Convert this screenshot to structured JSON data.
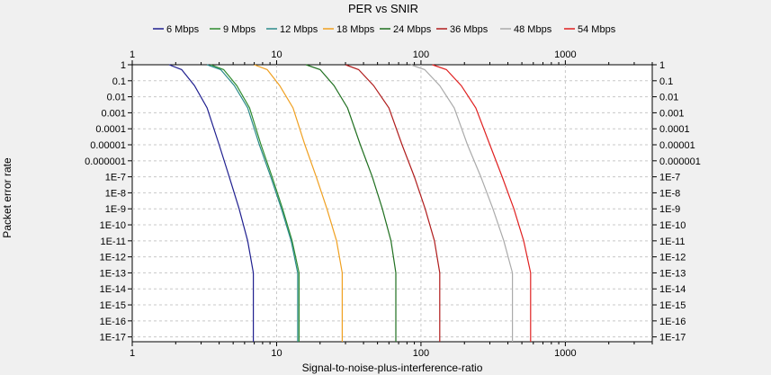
{
  "chart_data": {
    "type": "line",
    "title": "PER vs SNIR",
    "xlabel": "Signal-to-noise-plus-interference-ratio",
    "ylabel": "Packet error rate",
    "x_scale": "log",
    "y_scale": "log",
    "xlim": [
      1,
      4000
    ],
    "ylim": [
      5e-18,
      1
    ],
    "grid": true,
    "legend_position": "top",
    "x_tick_labels": [
      "1",
      "10",
      "100",
      "1000"
    ],
    "y_tick_labels": [
      "1",
      "0.1",
      "0.01",
      "0.001",
      "0.0001",
      "0.00001",
      "0.000001",
      "1E-7",
      "1E-8",
      "1E-9",
      "1E-10",
      "1E-11",
      "1E-12",
      "1E-13",
      "1E-14",
      "1E-15",
      "1E-16",
      "1E-17"
    ],
    "series": [
      {
        "name": "6 Mbps",
        "color": "#1f1f8f",
        "x": [
          1.8,
          2.2,
          2.7,
          3.3,
          4.0,
          4.7,
          5.5,
          6.3,
          6.9,
          6.9
        ],
        "y": [
          1,
          0.5,
          0.05,
          0.002,
          1e-05,
          1e-07,
          1e-09,
          1e-11,
          1e-13,
          5e-18
        ]
      },
      {
        "name": "9 Mbps",
        "color": "#2e8b2e",
        "x": [
          3.5,
          4.3,
          5.3,
          6.5,
          7.8,
          9.3,
          11,
          12.8,
          14.3,
          14.3
        ],
        "y": [
          1,
          0.5,
          0.05,
          0.002,
          1e-05,
          1e-07,
          1e-09,
          1e-11,
          1e-13,
          5e-18
        ]
      },
      {
        "name": "12 Mbps",
        "color": "#2a8a8a",
        "x": [
          3.3,
          4.1,
          5.1,
          6.3,
          7.6,
          9.1,
          10.8,
          12.6,
          14.0,
          14.0
        ],
        "y": [
          1,
          0.5,
          0.05,
          0.002,
          1e-05,
          1e-07,
          1e-09,
          1e-11,
          1e-13,
          5e-18
        ]
      },
      {
        "name": "18 Mbps",
        "color": "#f0a020",
        "x": [
          7,
          8.6,
          10.5,
          13,
          15.7,
          18.8,
          22.3,
          26,
          28.5,
          28.5
        ],
        "y": [
          1,
          0.5,
          0.05,
          0.002,
          1e-05,
          1e-07,
          1e-09,
          1e-11,
          1e-13,
          5e-18
        ]
      },
      {
        "name": "24 Mbps",
        "color": "#1f6f1f",
        "x": [
          16,
          20,
          25,
          31,
          38,
          46,
          54,
          62,
          67,
          67
        ],
        "y": [
          1,
          0.5,
          0.05,
          0.002,
          1e-05,
          1e-07,
          1e-09,
          1e-11,
          1e-13,
          5e-18
        ]
      },
      {
        "name": "36 Mbps",
        "color": "#b01c1c",
        "x": [
          30,
          37,
          47,
          60,
          74,
          90,
          107,
          124,
          135,
          135
        ],
        "y": [
          1,
          0.5,
          0.05,
          0.002,
          1e-05,
          1e-07,
          1e-09,
          1e-11,
          1e-13,
          5e-18
        ]
      },
      {
        "name": "48 Mbps",
        "color": "#aaaaaa",
        "x": [
          85,
          106,
          135,
          170,
          210,
          260,
          315,
          375,
          430,
          430
        ],
        "y": [
          1,
          0.5,
          0.05,
          0.002,
          1e-05,
          1e-07,
          1e-09,
          1e-11,
          1e-13,
          5e-18
        ]
      },
      {
        "name": "54 Mbps",
        "color": "#e02020",
        "x": [
          120,
          150,
          190,
          240,
          300,
          365,
          440,
          515,
          575,
          575
        ],
        "y": [
          1,
          0.5,
          0.05,
          0.002,
          1e-05,
          1e-07,
          1e-09,
          1e-11,
          1e-13,
          5e-18
        ]
      }
    ]
  }
}
